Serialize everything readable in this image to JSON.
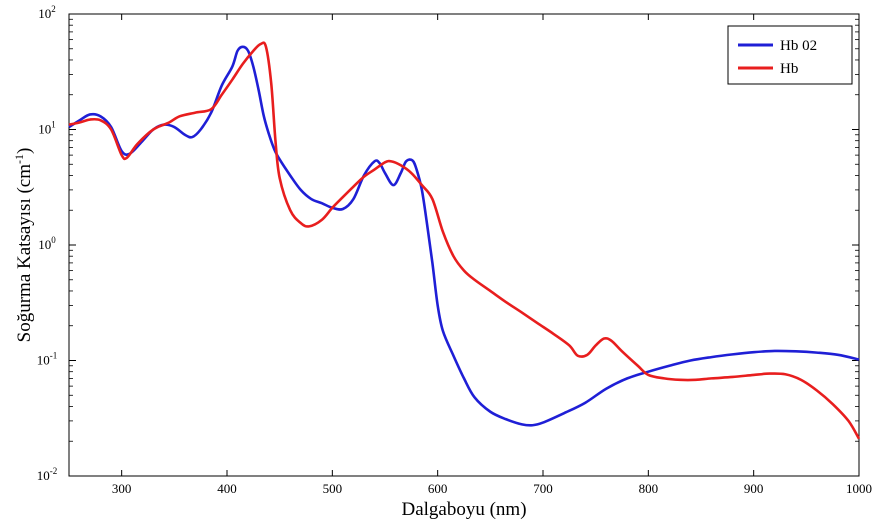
{
  "chart_data": {
    "type": "line",
    "title": "",
    "xlabel": "Dalgaboyu (nm)",
    "ylabel_main": "Soğurma Katsayısı (cm",
    "ylabel_sup": "-1",
    "ylabel_close": ")",
    "xlim": [
      250,
      1000
    ],
    "ylim": [
      0.01,
      100
    ],
    "yscale": "log",
    "grid": false,
    "legend_position": "top-right",
    "x_ticks": [
      300,
      400,
      500,
      600,
      700,
      800,
      900,
      1000
    ],
    "y_ticks": [
      {
        "value": 0.01,
        "base": "10",
        "exp": "-2"
      },
      {
        "value": 0.1,
        "base": "10",
        "exp": "-1"
      },
      {
        "value": 1,
        "base": "10",
        "exp": "0"
      },
      {
        "value": 10,
        "base": "10",
        "exp": "1"
      },
      {
        "value": 100,
        "base": "10",
        "exp": "2"
      }
    ],
    "series": [
      {
        "name": "Hb 02",
        "color": "#1f1fd6",
        "points": [
          [
            250,
            10.5
          ],
          [
            260,
            12.0
          ],
          [
            270,
            13.5
          ],
          [
            280,
            13.0
          ],
          [
            290,
            10.5
          ],
          [
            300,
            6.5
          ],
          [
            308,
            6.2
          ],
          [
            320,
            8.0
          ],
          [
            330,
            10.0
          ],
          [
            340,
            11.0
          ],
          [
            350,
            10.5
          ],
          [
            360,
            9.0
          ],
          [
            367,
            8.6
          ],
          [
            375,
            10.0
          ],
          [
            385,
            14.0
          ],
          [
            395,
            24.0
          ],
          [
            405,
            35.0
          ],
          [
            410,
            48.0
          ],
          [
            415,
            52.0
          ],
          [
            420,
            48.0
          ],
          [
            425,
            35.0
          ],
          [
            430,
            22.0
          ],
          [
            435,
            13.0
          ],
          [
            440,
            9.0
          ],
          [
            445,
            6.7
          ],
          [
            450,
            5.5
          ],
          [
            460,
            4.0
          ],
          [
            470,
            3.0
          ],
          [
            480,
            2.5
          ],
          [
            490,
            2.3
          ],
          [
            500,
            2.1
          ],
          [
            510,
            2.05
          ],
          [
            520,
            2.5
          ],
          [
            530,
            4.0
          ],
          [
            540,
            5.3
          ],
          [
            545,
            5.1
          ],
          [
            550,
            4.2
          ],
          [
            558,
            3.3
          ],
          [
            565,
            4.2
          ],
          [
            570,
            5.3
          ],
          [
            576,
            5.4
          ],
          [
            580,
            4.5
          ],
          [
            585,
            3.0
          ],
          [
            590,
            1.5
          ],
          [
            595,
            0.7
          ],
          [
            600,
            0.3
          ],
          [
            605,
            0.18
          ],
          [
            615,
            0.11
          ],
          [
            625,
            0.07
          ],
          [
            635,
            0.048
          ],
          [
            650,
            0.036
          ],
          [
            665,
            0.031
          ],
          [
            680,
            0.028
          ],
          [
            690,
            0.0275
          ],
          [
            700,
            0.029
          ],
          [
            720,
            0.035
          ],
          [
            740,
            0.043
          ],
          [
            760,
            0.057
          ],
          [
            780,
            0.07
          ],
          [
            800,
            0.08
          ],
          [
            820,
            0.09
          ],
          [
            840,
            0.1
          ],
          [
            860,
            0.107
          ],
          [
            880,
            0.113
          ],
          [
            900,
            0.118
          ],
          [
            920,
            0.121
          ],
          [
            940,
            0.12
          ],
          [
            960,
            0.117
          ],
          [
            980,
            0.112
          ],
          [
            1000,
            0.102
          ]
        ]
      },
      {
        "name": "Hb",
        "color": "#e81e1e",
        "points": [
          [
            250,
            11.0
          ],
          [
            260,
            11.5
          ],
          [
            270,
            12.2
          ],
          [
            280,
            12.0
          ],
          [
            290,
            10.0
          ],
          [
            300,
            6.0
          ],
          [
            305,
            5.7
          ],
          [
            315,
            7.5
          ],
          [
            330,
            10.0
          ],
          [
            345,
            11.5
          ],
          [
            355,
            13.0
          ],
          [
            370,
            14.0
          ],
          [
            385,
            15.0
          ],
          [
            395,
            20.0
          ],
          [
            405,
            27.0
          ],
          [
            415,
            37.0
          ],
          [
            425,
            48.0
          ],
          [
            432,
            55.0
          ],
          [
            437,
            52.0
          ],
          [
            442,
            25.0
          ],
          [
            446,
            8.0
          ],
          [
            450,
            3.8
          ],
          [
            460,
            2.0
          ],
          [
            470,
            1.55
          ],
          [
            478,
            1.45
          ],
          [
            490,
            1.65
          ],
          [
            500,
            2.1
          ],
          [
            510,
            2.6
          ],
          [
            520,
            3.2
          ],
          [
            530,
            3.9
          ],
          [
            540,
            4.5
          ],
          [
            550,
            5.2
          ],
          [
            556,
            5.3
          ],
          [
            565,
            4.9
          ],
          [
            575,
            4.2
          ],
          [
            585,
            3.3
          ],
          [
            595,
            2.5
          ],
          [
            605,
            1.3
          ],
          [
            615,
            0.8
          ],
          [
            625,
            0.6
          ],
          [
            635,
            0.5
          ],
          [
            650,
            0.4
          ],
          [
            665,
            0.32
          ],
          [
            680,
            0.26
          ],
          [
            695,
            0.21
          ],
          [
            710,
            0.17
          ],
          [
            725,
            0.135
          ],
          [
            733,
            0.11
          ],
          [
            742,
            0.112
          ],
          [
            750,
            0.135
          ],
          [
            758,
            0.155
          ],
          [
            765,
            0.148
          ],
          [
            775,
            0.12
          ],
          [
            790,
            0.09
          ],
          [
            800,
            0.075
          ],
          [
            815,
            0.07
          ],
          [
            830,
            0.068
          ],
          [
            845,
            0.068
          ],
          [
            860,
            0.07
          ],
          [
            880,
            0.072
          ],
          [
            900,
            0.075
          ],
          [
            915,
            0.077
          ],
          [
            930,
            0.076
          ],
          [
            945,
            0.068
          ],
          [
            960,
            0.055
          ],
          [
            975,
            0.042
          ],
          [
            990,
            0.03
          ],
          [
            1000,
            0.021
          ]
        ]
      }
    ]
  }
}
